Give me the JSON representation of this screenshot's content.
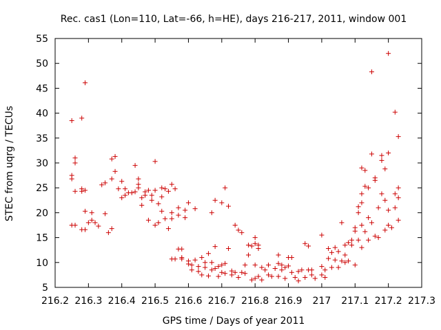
{
  "chart_data": {
    "type": "scatter",
    "title": "Rec. cas1 (Lon=110, Lat=-66, h=HE), days 216-217, 2011, window 001",
    "xlabel": "GPS time / Days of year 2011",
    "ylabel": "STEC from uqrg / TECUs",
    "xlim": [
      216.2,
      217.3
    ],
    "ylim": [
      5,
      55
    ],
    "xticks": [
      216.2,
      216.3,
      216.4,
      216.5,
      216.6,
      216.7,
      216.8,
      216.9,
      217,
      217.1,
      217.2,
      217.3
    ],
    "xtick_labels": [
      "216.2",
      "216.3",
      "216.4",
      "216.5",
      "216.6",
      "216.7",
      "216.8",
      "216.9",
      "217",
      "217.1",
      "217.2",
      "217.3"
    ],
    "yticks": [
      5,
      10,
      15,
      20,
      25,
      30,
      35,
      40,
      45,
      50,
      55
    ],
    "ytick_labels": [
      "5",
      "10",
      "15",
      "20",
      "25",
      "30",
      "35",
      "40",
      "45",
      "50",
      "55"
    ],
    "grid": false,
    "marker": "plus",
    "color": "#cc0000",
    "series": [
      {
        "points": [
          [
            216.25,
            38.5
          ],
          [
            216.25,
            27.5
          ],
          [
            216.25,
            26.8
          ],
          [
            216.26,
            31.0
          ],
          [
            216.26,
            30.0
          ],
          [
            216.26,
            24.3
          ],
          [
            216.25,
            17.5
          ],
          [
            216.26,
            17.5
          ],
          [
            216.28,
            39.0
          ],
          [
            216.29,
            46.1
          ],
          [
            216.28,
            24.8
          ],
          [
            216.28,
            24.3
          ],
          [
            216.29,
            24.5
          ],
          [
            216.29,
            20.3
          ],
          [
            216.28,
            16.6
          ],
          [
            216.29,
            16.6
          ],
          [
            216.3,
            18.0
          ],
          [
            216.31,
            18.5
          ],
          [
            216.31,
            20.0
          ],
          [
            216.32,
            18.0
          ],
          [
            216.33,
            17.3
          ],
          [
            216.34,
            25.6
          ],
          [
            216.35,
            26.0
          ],
          [
            216.35,
            19.8
          ],
          [
            216.36,
            16.0
          ],
          [
            216.37,
            16.8
          ],
          [
            216.37,
            26.8
          ],
          [
            216.37,
            30.8
          ],
          [
            216.38,
            31.3
          ],
          [
            216.38,
            28.3
          ],
          [
            216.39,
            24.8
          ],
          [
            216.4,
            23.0
          ],
          [
            216.4,
            26.3
          ],
          [
            216.41,
            24.8
          ],
          [
            216.41,
            23.5
          ],
          [
            216.42,
            24.0
          ],
          [
            216.43,
            24.0
          ],
          [
            216.44,
            29.5
          ],
          [
            216.44,
            24.2
          ],
          [
            216.45,
            26.8
          ],
          [
            216.45,
            25.7
          ],
          [
            216.45,
            25.0
          ],
          [
            216.46,
            23.0
          ],
          [
            216.46,
            21.5
          ],
          [
            216.47,
            24.2
          ],
          [
            216.47,
            23.5
          ],
          [
            216.48,
            24.5
          ],
          [
            216.48,
            18.5
          ],
          [
            216.49,
            23.5
          ],
          [
            216.49,
            22.5
          ],
          [
            216.5,
            30.3
          ],
          [
            216.5,
            24.5
          ],
          [
            216.5,
            17.5
          ],
          [
            216.51,
            21.8
          ],
          [
            216.51,
            18.0
          ],
          [
            216.52,
            25.0
          ],
          [
            216.52,
            23.2
          ],
          [
            216.52,
            20.3
          ],
          [
            216.53,
            18.8
          ],
          [
            216.53,
            24.8
          ],
          [
            216.54,
            16.8
          ],
          [
            216.54,
            24.3
          ],
          [
            216.55,
            20.0
          ],
          [
            216.55,
            18.8
          ],
          [
            216.55,
            25.7
          ],
          [
            216.56,
            24.8
          ],
          [
            216.55,
            10.7
          ],
          [
            216.56,
            10.7
          ],
          [
            216.57,
            12.7
          ],
          [
            216.57,
            21.0
          ],
          [
            216.57,
            19.5
          ],
          [
            216.58,
            12.7
          ],
          [
            216.58,
            11.0
          ],
          [
            216.58,
            10.7
          ],
          [
            216.59,
            20.5
          ],
          [
            216.59,
            19.0
          ],
          [
            216.6,
            22.0
          ],
          [
            216.6,
            10.3
          ],
          [
            216.6,
            9.7
          ],
          [
            216.61,
            9.5
          ],
          [
            216.61,
            8.5
          ],
          [
            216.62,
            10.5
          ],
          [
            216.62,
            20.8
          ],
          [
            216.63,
            9.2
          ],
          [
            216.63,
            8.2
          ],
          [
            216.64,
            11.0
          ],
          [
            216.64,
            7.5
          ],
          [
            216.65,
            10.0
          ],
          [
            216.65,
            9.0
          ],
          [
            216.66,
            11.8
          ],
          [
            216.66,
            7.3
          ],
          [
            216.67,
            10.0
          ],
          [
            216.67,
            20.0
          ],
          [
            216.67,
            8.5
          ],
          [
            216.68,
            22.5
          ],
          [
            216.68,
            13.2
          ],
          [
            216.68,
            8.8
          ],
          [
            216.69,
            7.2
          ],
          [
            216.69,
            9.2
          ],
          [
            216.7,
            22.0
          ],
          [
            216.7,
            9.5
          ],
          [
            216.7,
            8.0
          ],
          [
            216.71,
            25.0
          ],
          [
            216.71,
            9.8
          ],
          [
            216.71,
            7.8
          ],
          [
            216.72,
            21.3
          ],
          [
            216.72,
            12.8
          ],
          [
            216.73,
            7.5
          ],
          [
            216.73,
            8.3
          ],
          [
            216.74,
            17.5
          ],
          [
            216.74,
            8.0
          ],
          [
            216.75,
            16.5
          ],
          [
            216.75,
            7.0
          ],
          [
            216.76,
            16.0
          ],
          [
            216.76,
            8.0
          ],
          [
            216.77,
            9.5
          ],
          [
            216.77,
            7.8
          ],
          [
            216.78,
            13.5
          ],
          [
            216.78,
            11.5
          ],
          [
            216.79,
            13.3
          ],
          [
            216.79,
            6.5
          ],
          [
            216.8,
            15.0
          ],
          [
            216.8,
            13.8
          ],
          [
            216.8,
            9.5
          ],
          [
            216.8,
            6.8
          ],
          [
            216.81,
            13.5
          ],
          [
            216.81,
            12.8
          ],
          [
            216.81,
            7.2
          ],
          [
            216.82,
            9.0
          ],
          [
            216.82,
            6.5
          ],
          [
            216.83,
            8.5
          ],
          [
            216.84,
            7.5
          ],
          [
            216.84,
            9.5
          ],
          [
            216.85,
            7.2
          ],
          [
            216.86,
            8.8
          ],
          [
            216.87,
            11.5
          ],
          [
            216.87,
            9.8
          ],
          [
            216.87,
            7.2
          ],
          [
            216.88,
            9.5
          ],
          [
            216.88,
            8.5
          ],
          [
            216.89,
            9.0
          ],
          [
            216.89,
            6.8
          ],
          [
            216.9,
            11.0
          ],
          [
            216.9,
            9.3
          ],
          [
            216.91,
            8.0
          ],
          [
            216.91,
            11.0
          ],
          [
            216.92,
            7.0
          ],
          [
            216.93,
            8.2
          ],
          [
            216.93,
            6.3
          ],
          [
            216.94,
            8.5
          ],
          [
            216.95,
            7.0
          ],
          [
            216.95,
            13.8
          ],
          [
            216.96,
            8.5
          ],
          [
            216.96,
            13.3
          ],
          [
            216.97,
            7.5
          ],
          [
            216.97,
            8.5
          ],
          [
            216.98,
            6.8
          ],
          [
            217.0,
            15.5
          ],
          [
            217.0,
            9.2
          ],
          [
            217.0,
            7.5
          ],
          [
            217.01,
            8.5
          ],
          [
            217.01,
            7.0
          ],
          [
            217.02,
            12.8
          ],
          [
            217.02,
            10.8
          ],
          [
            217.03,
            12.0
          ],
          [
            217.03,
            9.0
          ],
          [
            217.04,
            13.0
          ],
          [
            217.04,
            10.5
          ],
          [
            217.05,
            9.0
          ],
          [
            217.05,
            12.2
          ],
          [
            217.06,
            10.3
          ],
          [
            217.06,
            18.0
          ],
          [
            217.07,
            13.5
          ],
          [
            217.07,
            11.5
          ],
          [
            217.07,
            10.0
          ],
          [
            217.08,
            10.3
          ],
          [
            217.08,
            14.0
          ],
          [
            217.09,
            14.5
          ],
          [
            217.09,
            13.5
          ],
          [
            217.1,
            17.0
          ],
          [
            217.1,
            16.3
          ],
          [
            217.1,
            9.5
          ],
          [
            217.11,
            21.2
          ],
          [
            217.11,
            20.0
          ],
          [
            217.11,
            14.5
          ],
          [
            217.12,
            29.0
          ],
          [
            217.12,
            23.8
          ],
          [
            217.12,
            22.0
          ],
          [
            217.12,
            17.5
          ],
          [
            217.12,
            13.0
          ],
          [
            217.13,
            28.5
          ],
          [
            217.13,
            25.3
          ],
          [
            217.13,
            16.2
          ],
          [
            217.14,
            25.0
          ],
          [
            217.14,
            19.0
          ],
          [
            217.14,
            14.5
          ],
          [
            217.15,
            48.3
          ],
          [
            217.15,
            31.8
          ],
          [
            217.15,
            18.0
          ],
          [
            217.16,
            27.0
          ],
          [
            217.16,
            26.5
          ],
          [
            217.16,
            15.3
          ],
          [
            217.17,
            21.0
          ],
          [
            217.17,
            15.0
          ],
          [
            217.18,
            31.5
          ],
          [
            217.18,
            30.5
          ],
          [
            217.18,
            23.8
          ],
          [
            217.19,
            28.8
          ],
          [
            217.19,
            22.5
          ],
          [
            217.19,
            16.5
          ],
          [
            217.2,
            52.0
          ],
          [
            217.2,
            32.0
          ],
          [
            217.2,
            20.5
          ],
          [
            217.2,
            17.5
          ],
          [
            217.21,
            17.0
          ],
          [
            217.22,
            40.2
          ],
          [
            217.22,
            23.8
          ],
          [
            217.22,
            21.0
          ],
          [
            217.23,
            35.3
          ],
          [
            217.23,
            25.0
          ],
          [
            217.23,
            23.0
          ],
          [
            217.23,
            18.5
          ]
        ]
      }
    ]
  }
}
